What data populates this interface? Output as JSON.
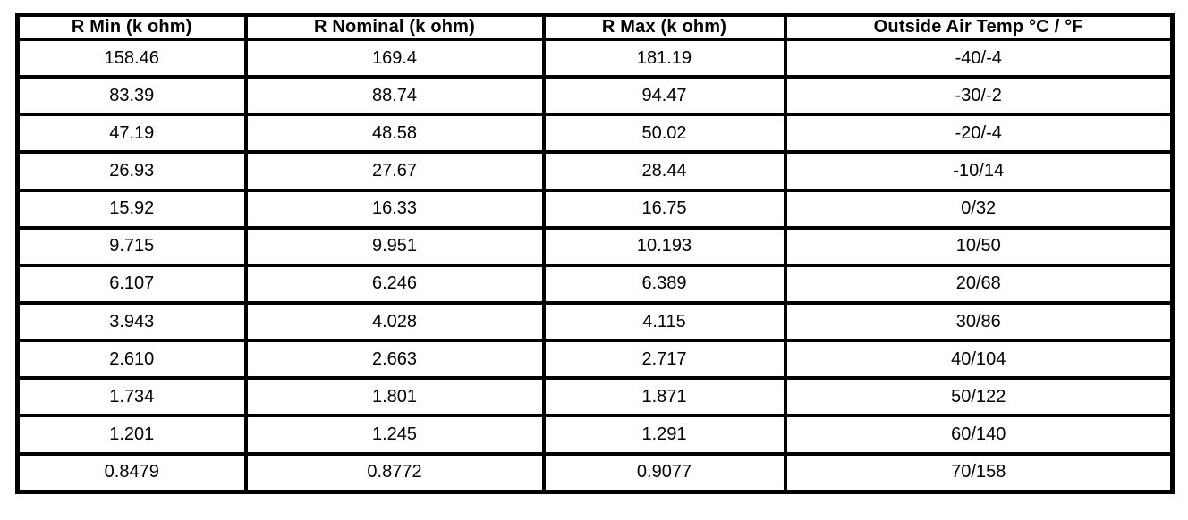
{
  "table": {
    "headers": [
      "R Min (k ohm)",
      "R Nominal (k ohm)",
      "R Max (k ohm)",
      "Outside Air Temp °C / °F"
    ],
    "rows": [
      {
        "cells": [
          "158.46",
          "169.4",
          "181.19",
          "-40/-4"
        ]
      },
      {
        "cells": [
          "83.39",
          "88.74",
          "94.47",
          "-30/-2"
        ]
      },
      {
        "cells": [
          "47.19",
          "48.58",
          "50.02",
          "-20/-4"
        ]
      },
      {
        "cells": [
          "26.93",
          "27.67",
          "28.44",
          "-10/14"
        ]
      },
      {
        "cells": [
          "15.92",
          "16.33",
          "16.75",
          "0/32"
        ]
      },
      {
        "cells": [
          "9.715",
          "9.951",
          "10.193",
          "10/50"
        ]
      },
      {
        "cells": [
          "6.107",
          "6.246",
          "6.389",
          "20/68"
        ]
      },
      {
        "cells": [
          "3.943",
          "4.028",
          "4.115",
          "30/86"
        ]
      },
      {
        "cells": [
          "2.610",
          "2.663",
          "2.717",
          "40/104"
        ]
      },
      {
        "cells": [
          "1.734",
          "1.801",
          "1.871",
          "50/122"
        ]
      },
      {
        "cells": [
          "1.201",
          "1.245",
          "1.291",
          "60/140"
        ]
      },
      {
        "cells": [
          "0.8479",
          "0.8772",
          "0.9077",
          "70/158"
        ]
      }
    ]
  },
  "colors": {
    "border": "#000000",
    "text": "#000000",
    "background": "#ffffff"
  }
}
